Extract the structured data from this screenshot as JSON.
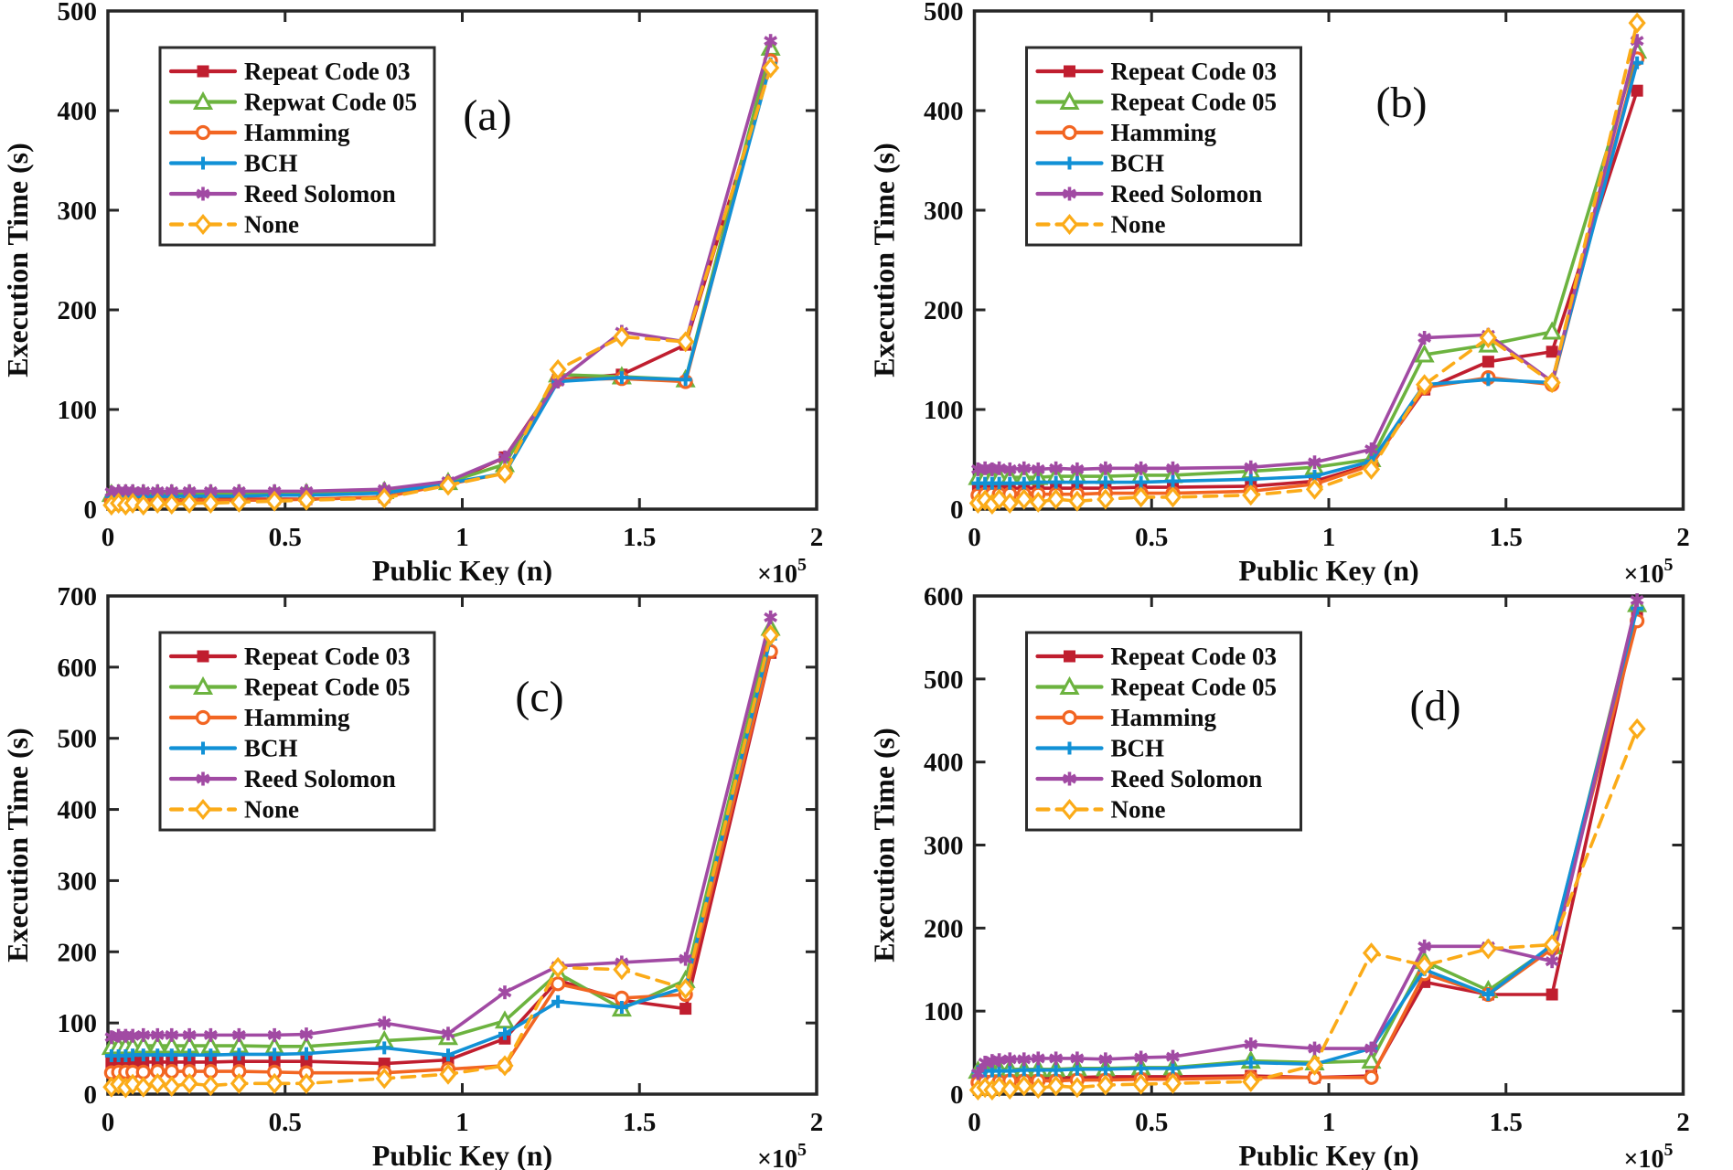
{
  "figure": {
    "xlabel": "Public Key (n)",
    "ylabel": "Execution Time (s)",
    "x_scale_label": "×10",
    "x_scale_exponent": "5",
    "axis_color": "#262626",
    "background": "#ffffff"
  },
  "chart_data": [
    {
      "type": "line",
      "label": "(a)",
      "xlabel": "Public Key (n)",
      "ylabel": "Execution Time (s)",
      "xlim": [
        0,
        2
      ],
      "ylim": [
        0,
        500
      ],
      "ytick_step": 100,
      "xticks": [
        0,
        0.5,
        1,
        1.5,
        2
      ],
      "xtick_labels": [
        "0",
        "0.5",
        "1",
        "1.5",
        "2"
      ],
      "x_units": "×10^5",
      "legend_position": "upper-left",
      "grid": false,
      "x": [
        0.01,
        0.03,
        0.05,
        0.07,
        0.1,
        0.14,
        0.18,
        0.23,
        0.29,
        0.37,
        0.47,
        0.56,
        0.78,
        0.96,
        1.12,
        1.27,
        1.45,
        1.63,
        1.87
      ],
      "series": [
        {
          "name": "Repeat Code 03",
          "color": "#c01e2f",
          "marker": "square",
          "dash": false,
          "values": [
            8,
            8,
            9,
            9,
            9,
            9,
            9,
            10,
            10,
            10,
            10,
            10,
            12,
            26,
            52,
            130,
            135,
            165,
            445
          ]
        },
        {
          "name": "Repwat Code 05",
          "color": "#6cb33f",
          "marker": "triangle",
          "dash": false,
          "values": [
            15,
            15,
            15,
            15,
            15,
            15,
            15,
            15,
            15,
            15,
            15,
            16,
            18,
            27,
            45,
            135,
            133,
            130,
            463
          ]
        },
        {
          "name": "Hamming",
          "color": "#f26522",
          "marker": "circle",
          "dash": false,
          "values": [
            8,
            8,
            8,
            8,
            8,
            8,
            8,
            9,
            9,
            9,
            9,
            10,
            12,
            25,
            36,
            130,
            131,
            128,
            450
          ]
        },
        {
          "name": "BCH",
          "color": "#1191d6",
          "marker": "plus",
          "dash": false,
          "values": [
            13,
            13,
            13,
            13,
            13,
            13,
            13,
            13,
            13,
            13,
            14,
            14,
            16,
            26,
            36,
            128,
            132,
            130,
            447
          ]
        },
        {
          "name": "Reed Solomon",
          "color": "#a14aa3",
          "marker": "asterisk",
          "dash": false,
          "values": [
            17,
            18,
            18,
            18,
            18,
            18,
            18,
            18,
            18,
            18,
            18,
            18,
            20,
            28,
            52,
            128,
            178,
            168,
            470
          ]
        },
        {
          "name": "None",
          "color": "#fbab18",
          "marker": "diamond",
          "dash": true,
          "values": [
            4,
            6,
            4,
            6,
            4,
            6,
            5,
            6,
            6,
            7,
            8,
            9,
            11,
            24,
            36,
            140,
            173,
            168,
            443
          ]
        }
      ]
    },
    {
      "type": "line",
      "label": "(b)",
      "xlabel": "Public Key (n)",
      "ylabel": "Execution Time (s)",
      "xlim": [
        0,
        2
      ],
      "ylim": [
        0,
        500
      ],
      "ytick_step": 100,
      "xticks": [
        0,
        0.5,
        1,
        1.5,
        2
      ],
      "xtick_labels": [
        "0",
        "0.5",
        "1",
        "1.5",
        "2"
      ],
      "x_units": "×10^5",
      "legend_position": "upper-left",
      "grid": false,
      "x": [
        0.01,
        0.03,
        0.05,
        0.07,
        0.1,
        0.14,
        0.18,
        0.23,
        0.29,
        0.37,
        0.47,
        0.56,
        0.78,
        0.96,
        1.12,
        1.27,
        1.45,
        1.63,
        1.87
      ],
      "series": [
        {
          "name": "Repeat Code 03",
          "color": "#c01e2f",
          "marker": "square",
          "dash": false,
          "values": [
            20,
            21,
            21,
            21,
            21,
            21,
            21,
            21,
            21,
            21,
            22,
            22,
            23,
            28,
            45,
            120,
            148,
            158,
            420
          ]
        },
        {
          "name": "Repeat Code 05",
          "color": "#6cb33f",
          "marker": "triangle",
          "dash": false,
          "values": [
            32,
            32,
            32,
            32,
            32,
            32,
            32,
            33,
            33,
            33,
            34,
            34,
            38,
            42,
            50,
            155,
            165,
            178,
            460
          ]
        },
        {
          "name": "Hamming",
          "color": "#f26522",
          "marker": "circle",
          "dash": false,
          "values": [
            14,
            15,
            15,
            15,
            15,
            15,
            15,
            15,
            15,
            16,
            16,
            16,
            18,
            25,
            44,
            122,
            132,
            125,
            452
          ]
        },
        {
          "name": "BCH",
          "color": "#1191d6",
          "marker": "plus",
          "dash": false,
          "values": [
            26,
            26,
            26,
            26,
            26,
            26,
            27,
            27,
            27,
            27,
            27,
            28,
            30,
            33,
            48,
            125,
            130,
            127,
            448
          ]
        },
        {
          "name": "Reed Solomon",
          "color": "#a14aa3",
          "marker": "asterisk",
          "dash": false,
          "values": [
            40,
            41,
            40,
            41,
            40,
            41,
            40,
            41,
            40,
            41,
            41,
            41,
            42,
            47,
            60,
            172,
            175,
            128,
            470
          ]
        },
        {
          "name": "None",
          "color": "#fbab18",
          "marker": "diamond",
          "dash": true,
          "values": [
            6,
            9,
            5,
            10,
            6,
            10,
            7,
            10,
            8,
            10,
            12,
            12,
            14,
            20,
            40,
            125,
            172,
            127,
            488
          ]
        }
      ]
    },
    {
      "type": "line",
      "label": "(c)",
      "xlabel": "Public Key (n)",
      "ylabel": "Execution Time (s)",
      "xlim": [
        0,
        2
      ],
      "ylim": [
        0,
        700
      ],
      "ytick_step": 100,
      "xticks": [
        0,
        0.5,
        1,
        1.5,
        2
      ],
      "xtick_labels": [
        "0",
        "0.5",
        "1",
        "1.5",
        "2"
      ],
      "x_units": "×10^5",
      "legend_position": "upper-left",
      "grid": false,
      "x": [
        0.01,
        0.03,
        0.05,
        0.07,
        0.1,
        0.14,
        0.18,
        0.23,
        0.29,
        0.37,
        0.47,
        0.56,
        0.78,
        0.96,
        1.12,
        1.27,
        1.45,
        1.63,
        1.87
      ],
      "series": [
        {
          "name": "Repeat Code 03",
          "color": "#c01e2f",
          "marker": "square",
          "dash": false,
          "values": [
            44,
            45,
            45,
            45,
            45,
            45,
            45,
            45,
            45,
            46,
            46,
            46,
            43,
            48,
            78,
            160,
            132,
            120,
            620
          ]
        },
        {
          "name": "Repeat Code 05",
          "color": "#6cb33f",
          "marker": "triangle",
          "dash": false,
          "values": [
            66,
            67,
            67,
            67,
            68,
            68,
            68,
            68,
            68,
            68,
            67,
            67,
            75,
            80,
            103,
            170,
            120,
            160,
            655
          ]
        },
        {
          "name": "Hamming",
          "color": "#f26522",
          "marker": "circle",
          "dash": false,
          "values": [
            30,
            31,
            31,
            31,
            31,
            32,
            32,
            32,
            32,
            32,
            31,
            30,
            30,
            35,
            40,
            155,
            135,
            140,
            622
          ]
        },
        {
          "name": "BCH",
          "color": "#1191d6",
          "marker": "plus",
          "dash": false,
          "values": [
            54,
            54,
            54,
            55,
            55,
            55,
            55,
            55,
            55,
            56,
            56,
            57,
            65,
            55,
            85,
            130,
            122,
            150,
            640
          ]
        },
        {
          "name": "Reed Solomon",
          "color": "#a14aa3",
          "marker": "asterisk",
          "dash": false,
          "values": [
            80,
            82,
            82,
            82,
            83,
            83,
            83,
            83,
            83,
            83,
            83,
            84,
            100,
            85,
            143,
            180,
            185,
            190,
            670
          ]
        },
        {
          "name": "None",
          "color": "#fbab18",
          "marker": "diamond",
          "dash": true,
          "values": [
            10,
            14,
            9,
            14,
            10,
            15,
            11,
            15,
            12,
            15,
            15,
            15,
            22,
            28,
            40,
            178,
            175,
            148,
            645
          ]
        }
      ]
    },
    {
      "type": "line",
      "label": "(d)",
      "xlabel": "Public Key (n)",
      "ylabel": "Execution Time (s)",
      "xlim": [
        0,
        2
      ],
      "ylim": [
        0,
        600
      ],
      "ytick_step": 100,
      "xticks": [
        0,
        0.5,
        1,
        1.5,
        2
      ],
      "xtick_labels": [
        "0",
        "0.5",
        "1",
        "1.5",
        "2"
      ],
      "x_units": "×10^5",
      "legend_position": "upper-left",
      "grid": false,
      "x": [
        0.01,
        0.03,
        0.05,
        0.07,
        0.1,
        0.14,
        0.18,
        0.23,
        0.29,
        0.37,
        0.47,
        0.56,
        0.78,
        0.96,
        1.12,
        1.27,
        1.45,
        1.63,
        1.87
      ],
      "series": [
        {
          "name": "Repeat Code 03",
          "color": "#c01e2f",
          "marker": "square",
          "dash": false,
          "values": [
            19,
            20,
            20,
            20,
            20,
            20,
            20,
            20,
            20,
            21,
            21,
            21,
            22,
            20,
            22,
            135,
            120,
            120,
            580
          ]
        },
        {
          "name": "Repeat Code 05",
          "color": "#6cb33f",
          "marker": "triangle",
          "dash": false,
          "values": [
            28,
            29,
            29,
            30,
            30,
            30,
            30,
            30,
            31,
            31,
            32,
            32,
            40,
            38,
            40,
            160,
            125,
            178,
            590
          ]
        },
        {
          "name": "Hamming",
          "color": "#f26522",
          "marker": "circle",
          "dash": false,
          "values": [
            14,
            15,
            15,
            15,
            16,
            16,
            16,
            16,
            17,
            17,
            18,
            18,
            20,
            20,
            20,
            145,
            120,
            175,
            570
          ]
        },
        {
          "name": "BCH",
          "color": "#1191d6",
          "marker": "plus",
          "dash": false,
          "values": [
            27,
            28,
            28,
            28,
            28,
            29,
            29,
            29,
            30,
            30,
            31,
            31,
            38,
            36,
            55,
            150,
            120,
            180,
            585
          ]
        },
        {
          "name": "Reed Solomon",
          "color": "#a14aa3",
          "marker": "asterisk",
          "dash": false,
          "values": [
            25,
            38,
            40,
            41,
            42,
            42,
            43,
            43,
            43,
            42,
            44,
            45,
            60,
            55,
            55,
            178,
            178,
            160,
            595
          ]
        },
        {
          "name": "None",
          "color": "#fbab18",
          "marker": "diamond",
          "dash": true,
          "values": [
            5,
            8,
            5,
            9,
            6,
            10,
            7,
            10,
            8,
            11,
            12,
            13,
            15,
            35,
            170,
            155,
            175,
            180,
            440
          ]
        }
      ]
    }
  ]
}
